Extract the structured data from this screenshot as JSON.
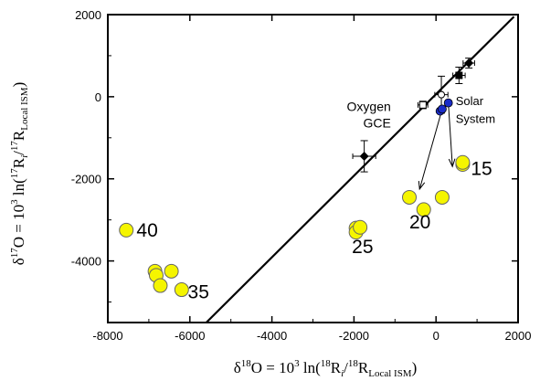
{
  "chart_data": {
    "type": "scatter",
    "title": "",
    "xlim": [
      -8000,
      2000
    ],
    "ylim": [
      -5500,
      2000
    ],
    "x_ticks": [
      -8000,
      -6000,
      -4000,
      -2000,
      0,
      2000
    ],
    "x_tick_labels": [
      "-8000",
      "-6000",
      "-4000",
      "-2000",
      "0",
      "2000"
    ],
    "y_ticks": [
      -4000,
      -2000,
      0,
      2000
    ],
    "y_tick_labels": [
      "-4000",
      "-2000",
      "0",
      "2000"
    ],
    "xlabel": {
      "pre": "δ",
      "sup1": "18",
      "mid1": "O = 10",
      "sup2": "3",
      "mid2": " ln(",
      "sup3": "18",
      "mid3": "R",
      "sub1": "i",
      "mid4": "/",
      "sup4": "18",
      "mid5": "R",
      "sub2": "Local ISM",
      "post": ")"
    },
    "ylabel": {
      "pre": "δ",
      "sup1": "17",
      "mid1": "O = 10",
      "sup2": "3",
      "mid2": " ln(",
      "sup3": "17",
      "mid3": "R",
      "sub1": "i",
      "mid4": "/",
      "sup4": "17",
      "mid5": "R",
      "sub2": "Local ISM",
      "post": ")"
    },
    "grid": false,
    "colors": {
      "model_points": "#f5f500",
      "solar_system": "#1a2cc8",
      "line": "#000000",
      "data": "#000000"
    },
    "reference_line": {
      "points": [
        [
          -5600,
          -5500
        ],
        [
          1900,
          1950
        ]
      ]
    },
    "series": [
      {
        "values": [
          {
            "x": -7550,
            "y": -3250
          },
          {
            "x": -6850,
            "y": -4250
          },
          {
            "x": -6820,
            "y": -4350
          },
          {
            "x": -6720,
            "y": -4600
          },
          {
            "x": -6450,
            "y": -4250
          },
          {
            "x": -6200,
            "y": -4700
          },
          {
            "x": -1950,
            "y": -3200
          },
          {
            "x": -1950,
            "y": -3300
          },
          {
            "x": -1850,
            "y": -3180
          },
          {
            "x": -650,
            "y": -2450
          },
          {
            "x": -300,
            "y": -2750
          },
          {
            "x": 150,
            "y": -2450
          },
          {
            "x": 650,
            "y": -1650
          },
          {
            "x": 650,
            "y": -1600
          }
        ]
      },
      {
        "values": [
          {
            "x": 100,
            "y": -350
          },
          {
            "x": 150,
            "y": -300
          },
          {
            "x": 300,
            "y": -150
          }
        ]
      },
      {
        "values": [
          {
            "x": -1750,
            "y": -1450,
            "xerr": 280,
            "yerr": 380
          },
          {
            "x": -320,
            "y": -200,
            "xerr": 120,
            "yerr": 90
          },
          {
            "x": 130,
            "y": 50,
            "xerr": 160,
            "yerr": 450
          },
          {
            "x": 560,
            "y": 520,
            "xerr": 150,
            "yerr": 200
          },
          {
            "x": 800,
            "y": 820,
            "xerr": 140,
            "yerr": 120
          }
        ]
      }
    ],
    "arrows": [
      {
        "from": [
          150,
          -300
        ],
        "to": [
          -400,
          -2250
        ]
      },
      {
        "from": [
          300,
          -150
        ],
        "to": [
          400,
          -1700
        ]
      }
    ],
    "annotations": [
      {
        "text": "Oxygen",
        "x": -1100,
        "y": -350
      },
      {
        "text": "GCE",
        "x": -1100,
        "y": -750
      },
      {
        "text": "Solar",
        "x": 480,
        "y": -200
      },
      {
        "text": "System",
        "x": 480,
        "y": -640
      }
    ],
    "group_labels": [
      {
        "text": "40",
        "x": -7300,
        "y": -3250
      },
      {
        "text": "35",
        "x": -6050,
        "y": -4750
      },
      {
        "text": "25",
        "x": -2050,
        "y": -3650
      },
      {
        "text": "20",
        "x": -650,
        "y": -3050
      },
      {
        "text": "15",
        "x": 850,
        "y": -1750
      }
    ]
  }
}
